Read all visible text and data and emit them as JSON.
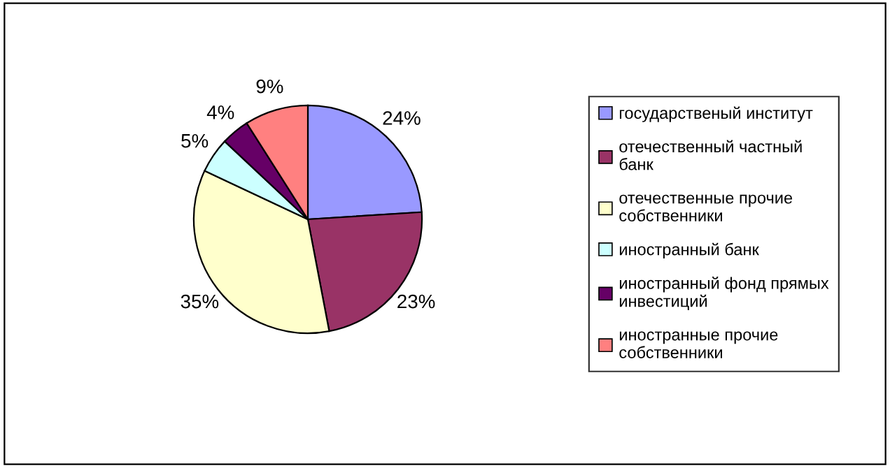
{
  "chart_data": {
    "type": "pie",
    "categories": [
      "государственый институт",
      "отечественный частный\nбанк",
      "отечественные прочие\nсобственники",
      "иностранный банк",
      "иностранный фонд прямых\nинвестиций",
      "иностранные прочие\nсобственники"
    ],
    "values": [
      24,
      23,
      35,
      5,
      4,
      9
    ],
    "colors": [
      "#9999ff",
      "#993366",
      "#ffffcc",
      "#ccffff",
      "#660066",
      "#ff8080"
    ],
    "value_labels": [
      "24%",
      "23%",
      "35%",
      "5%",
      "4%",
      "9%"
    ],
    "legend": "right"
  }
}
